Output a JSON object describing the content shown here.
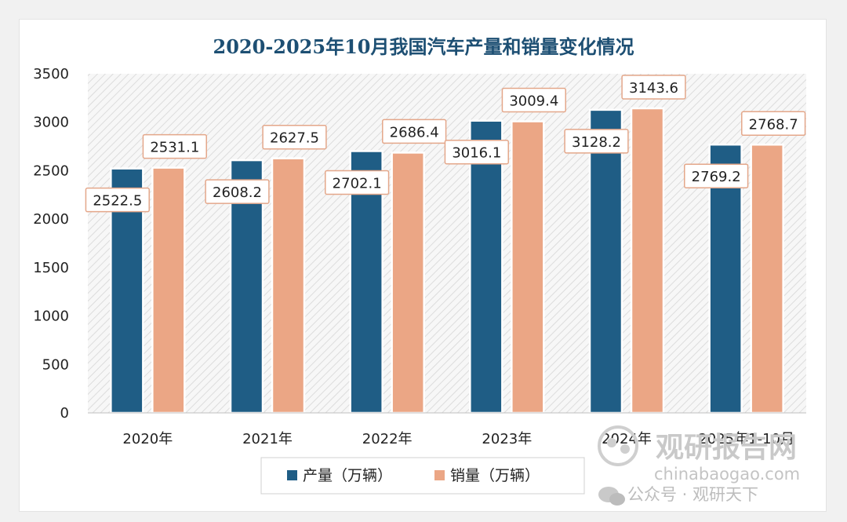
{
  "chart_data": {
    "type": "bar",
    "title": "2020-2025年10月我国汽车产量和销量变化情况",
    "categories": [
      "2020年",
      "2021年",
      "2022年",
      "2023年",
      "2024年",
      "2025年1-10月"
    ],
    "series": [
      {
        "name": "产量（万辆）",
        "color": "#1f5d85",
        "values": [
          2522.5,
          2608.2,
          2702.1,
          3016.1,
          3128.2,
          2769.2
        ]
      },
      {
        "name": "销量（万辆）",
        "color": "#eba685",
        "values": [
          2531.1,
          2627.5,
          2686.4,
          3009.4,
          3143.6,
          2768.7
        ]
      }
    ],
    "ylim": [
      0,
      3500
    ],
    "yticks": [
      0,
      500,
      1000,
      1500,
      2000,
      2500,
      3000,
      3500
    ],
    "legend_position": "bottom",
    "data_labels": true
  },
  "watermark": {
    "brand": "观研报告网",
    "url": "chinabaogao.com",
    "account": "公众号 · 观研天下"
  }
}
